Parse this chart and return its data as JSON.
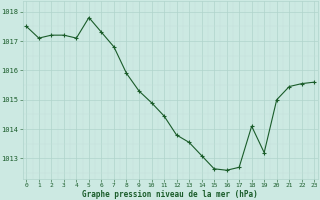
{
  "x": [
    0,
    1,
    2,
    3,
    4,
    5,
    6,
    7,
    8,
    9,
    10,
    11,
    12,
    13,
    14,
    15,
    16,
    17,
    18,
    19,
    20,
    21,
    22,
    23
  ],
  "y": [
    1017.5,
    1017.1,
    1017.2,
    1017.2,
    1017.1,
    1017.8,
    1017.3,
    1016.8,
    1015.9,
    1015.3,
    1014.9,
    1014.45,
    1013.8,
    1013.55,
    1013.1,
    1012.65,
    1012.6,
    1012.7,
    1014.1,
    1013.2,
    1015.0,
    1015.45,
    1015.55,
    1015.6
  ],
  "bg_color": "#cce9e2",
  "line_color": "#1a5c2a",
  "marker_color": "#1a5c2a",
  "grid_color_major": "#b0d4cc",
  "grid_color_minor": "#c4dfd9",
  "xlabel": "Graphe pression niveau de la mer (hPa)",
  "xlabel_color": "#1a5c2a",
  "tick_color": "#1a5c2a",
  "ylim_min": 1012.3,
  "ylim_max": 1018.35,
  "ytick_values": [
    1013,
    1014,
    1015,
    1016,
    1017,
    1018
  ],
  "xtick_values": [
    0,
    1,
    2,
    3,
    4,
    5,
    6,
    7,
    8,
    9,
    10,
    11,
    12,
    13,
    14,
    15,
    16,
    17,
    18,
    19,
    20,
    21,
    22,
    23
  ],
  "figsize": [
    3.2,
    2.0
  ],
  "dpi": 100
}
